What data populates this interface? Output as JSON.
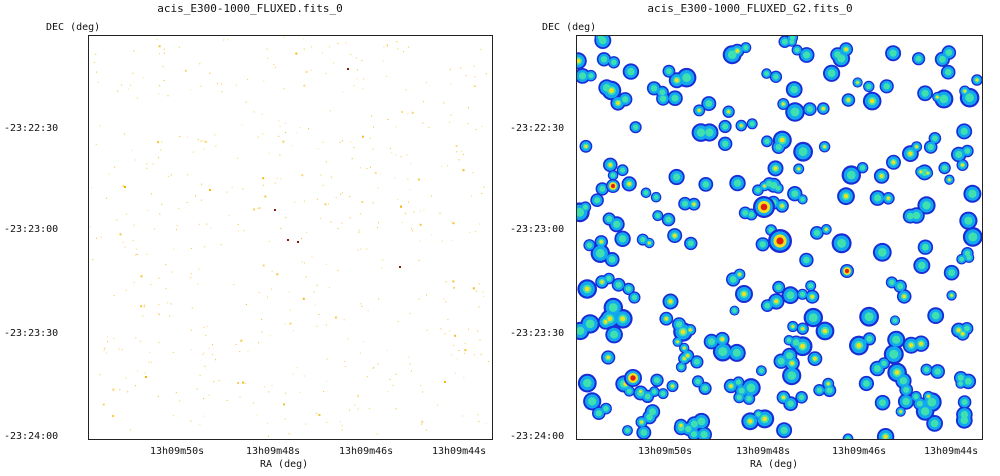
{
  "panels": [
    {
      "title": "acis_E300-1000_FLUXED.fits_0",
      "y_axis_label": "DEC (deg)",
      "x_axis_label": "RA (deg)",
      "y_ticks": [
        "-23:22:30",
        "-23:23:00",
        "-23:23:30",
        "-23:24:00"
      ],
      "x_ticks": [
        "13h09m50s",
        "13h09m48s",
        "13h09m46s",
        "13h09m44s"
      ],
      "colormap": "sparse-yellow",
      "colors": {
        "point": "#f5b400",
        "hot": "#8a1a00"
      }
    },
    {
      "title": "acis_E300-1000_FLUXED_G2.fits_0",
      "y_axis_label": "DEC (deg)",
      "x_axis_label": "RA (deg)",
      "y_ticks": [
        "-23:22:30",
        "-23:23:00",
        "-23:23:30",
        "-23:24:00"
      ],
      "x_ticks": [
        "13h09m50s",
        "13h09m48s",
        "13h09m46s",
        "13h09m44s"
      ],
      "colormap": "jet-smoothed",
      "colors": {
        "outer": "#1a2bd8",
        "mid": "#12a8ee",
        "inner": "#3fe0b0",
        "warm": "#f0e020",
        "hot": "#e02010"
      }
    }
  ]
}
